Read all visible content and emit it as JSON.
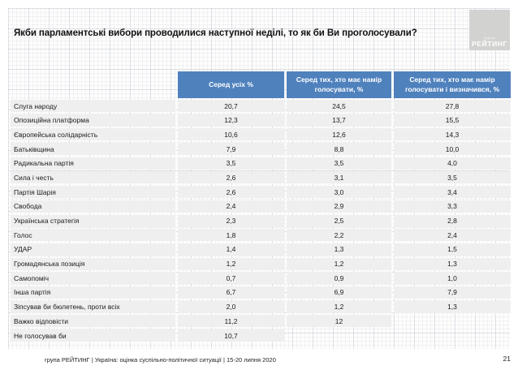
{
  "slide": {
    "title": "Якби парламентські вибори проводилися наступної неділі, то як би Ви проголосували?",
    "logo": {
      "small": "група",
      "main": "РЕЙТИНГ"
    },
    "footer": {
      "text": "група РЕЙТИНГ |  Україна: оцінка суспільно-політичної ситуації  | 15-20 липня  2020",
      "page": "21"
    }
  },
  "table": {
    "columns": [
      "Серед усіх %",
      "Серед тих, хто має намір голосувати, %",
      "Серед тих, хто має намір голосувати і визначився, %"
    ],
    "rows": [
      {
        "label": "Слуга народу",
        "v1": "20,7",
        "v2": "24,5",
        "v3": "27,8"
      },
      {
        "label": "Опозиційна платформа",
        "v1": "12,3",
        "v2": "13,7",
        "v3": "15,5"
      },
      {
        "label": "Європейська солідарність",
        "v1": "10,6",
        "v2": "12,6",
        "v3": "14,3"
      },
      {
        "label": "Батьківщина",
        "v1": "7,9",
        "v2": "8,8",
        "v3": "10,0"
      },
      {
        "label": "Радикальна партія",
        "v1": "3,5",
        "v2": "3,5",
        "v3": "4,0"
      },
      {
        "label": "Сила і честь",
        "v1": "2,6",
        "v2": "3,1",
        "v3": "3,5"
      },
      {
        "label": "Партія Шарія",
        "v1": "2,6",
        "v2": "3,0",
        "v3": "3,4"
      },
      {
        "label": "Свобода",
        "v1": "2,4",
        "v2": "2,9",
        "v3": "3,3"
      },
      {
        "label": "Українська стратегія",
        "v1": "2,3",
        "v2": "2,5",
        "v3": "2,8"
      },
      {
        "label": "Голос",
        "v1": "1,8",
        "v2": "2,2",
        "v3": "2,4"
      },
      {
        "label": "УДАР",
        "v1": "1,4",
        "v2": "1,3",
        "v3": "1,5"
      },
      {
        "label": "Громадянська позиція",
        "v1": "1,2",
        "v2": "1,2",
        "v3": "1,3"
      },
      {
        "label": "Самопоміч",
        "v1": "0,7",
        "v2": "0,9",
        "v3": "1,0"
      },
      {
        "label": "Інша партія",
        "v1": "6,7",
        "v2": "6,9",
        "v3": "7,9"
      },
      {
        "label": "Зіпсував би бюлетень, проти всіх",
        "v1": "2,0",
        "v2": "1,2",
        "v3": "1,3"
      },
      {
        "label": "Важко відповісти",
        "v1": "11,2",
        "v2": "12",
        "v3": null,
        "spaced": true
      },
      {
        "label": "Не голосував би",
        "v1": "10,7",
        "v2": null,
        "v3": null,
        "spaced": true
      }
    ]
  },
  "colors": {
    "header_blue": "#4f81bd",
    "row_grey": "#efefef",
    "logo_grey": "#d2d2d0"
  },
  "chart_data": {
    "type": "table",
    "title": "Якби парламентські вибори проводилися наступної неділі, то як би Ви проголосували?",
    "columns": [
      "Серед усіх %",
      "Серед тих, хто має намір голосувати, %",
      "Серед тих, хто має намір голосувати і визначився, %"
    ],
    "rows": [
      [
        "Слуга народу",
        20.7,
        24.5,
        27.8
      ],
      [
        "Опозиційна платформа",
        12.3,
        13.7,
        15.5
      ],
      [
        "Європейська солідарність",
        10.6,
        12.6,
        14.3
      ],
      [
        "Батьківщина",
        7.9,
        8.8,
        10.0
      ],
      [
        "Радикальна партія",
        3.5,
        3.5,
        4.0
      ],
      [
        "Сила і честь",
        2.6,
        3.1,
        3.5
      ],
      [
        "Партія Шарія",
        2.6,
        3.0,
        3.4
      ],
      [
        "Свобода",
        2.4,
        2.9,
        3.3
      ],
      [
        "Українська стратегія",
        2.3,
        2.5,
        2.8
      ],
      [
        "Голос",
        1.8,
        2.2,
        2.4
      ],
      [
        "УДАР",
        1.4,
        1.3,
        1.5
      ],
      [
        "Громадянська позиція",
        1.2,
        1.2,
        1.3
      ],
      [
        "Самопоміч",
        0.7,
        0.9,
        1.0
      ],
      [
        "Інша партія",
        6.7,
        6.9,
        7.9
      ],
      [
        "Зіпсував би бюлетень, проти всіх",
        2.0,
        1.2,
        1.3
      ],
      [
        "Важко відповісти",
        11.2,
        12,
        null
      ],
      [
        "Не голосував би",
        10.7,
        null,
        null
      ]
    ]
  }
}
